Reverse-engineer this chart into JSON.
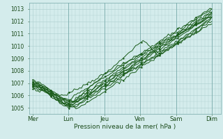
{
  "xlabel": "Pression niveau de la mer( hPa )",
  "ylim": [
    1004.5,
    1013.5
  ],
  "yticks": [
    1005,
    1006,
    1007,
    1008,
    1009,
    1010,
    1011,
    1012,
    1013
  ],
  "x_day_labels": [
    "Mer",
    "Lun",
    "Jeu",
    "Ven",
    "Sam",
    "Dim"
  ],
  "x_day_positions": [
    0,
    2,
    4,
    6,
    8,
    10
  ],
  "xlim": [
    -0.2,
    10.5
  ],
  "background_color": "#d4ecec",
  "grid_color": "#aacccc",
  "line_color": "#1a5c1a",
  "line_width": 0.7,
  "marker_size": 1.5
}
